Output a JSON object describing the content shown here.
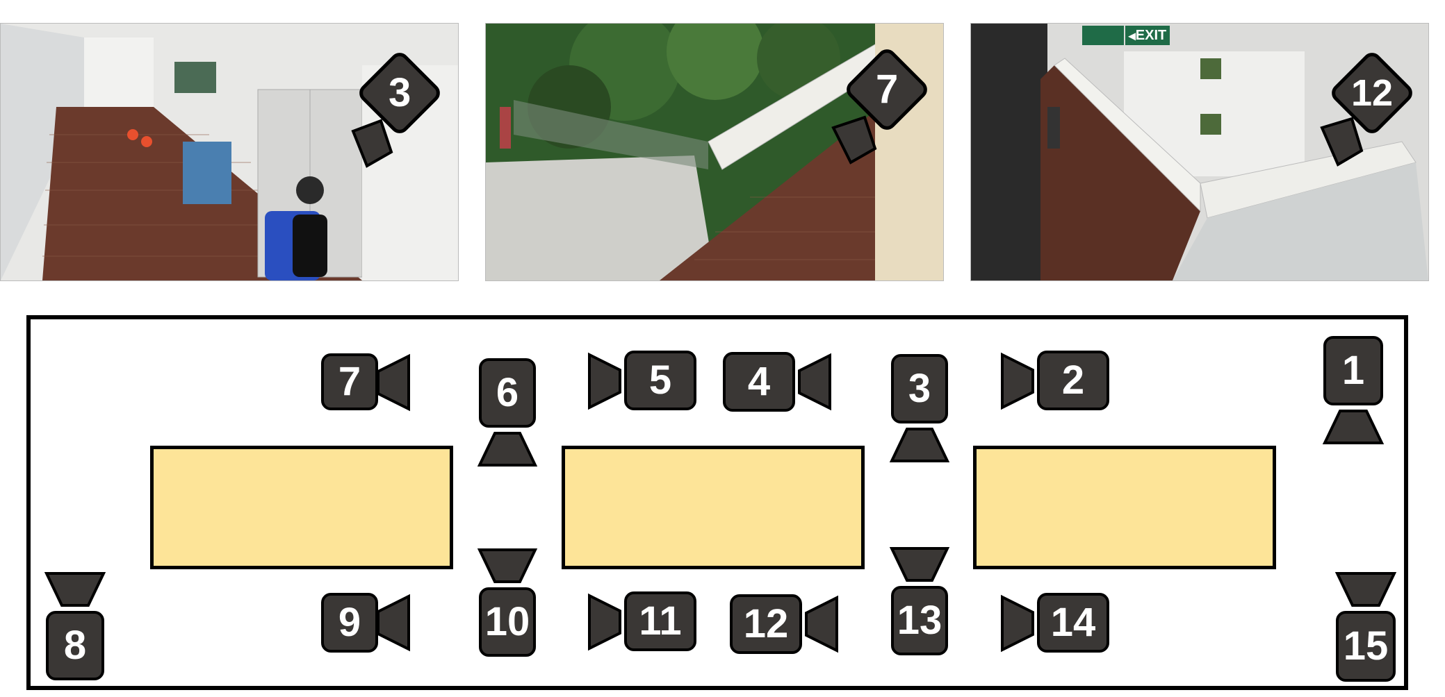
{
  "photos": [
    {
      "camera_label": "3",
      "exit_sign": ""
    },
    {
      "camera_label": "7",
      "exit_sign": ""
    },
    {
      "camera_label": "12",
      "exit_sign": "EXIT"
    }
  ],
  "cameras": {
    "c1": "1",
    "c2": "2",
    "c3": "3",
    "c4": "4",
    "c5": "5",
    "c6": "6",
    "c7": "7",
    "c8": "8",
    "c9": "9",
    "c10": "10",
    "c11": "11",
    "c12": "12",
    "c13": "13",
    "c14": "14",
    "c15": "15"
  },
  "colors": {
    "room_fill": "#fde498",
    "camera_body": "#3a3735",
    "camera_lens": "#3a3735"
  }
}
